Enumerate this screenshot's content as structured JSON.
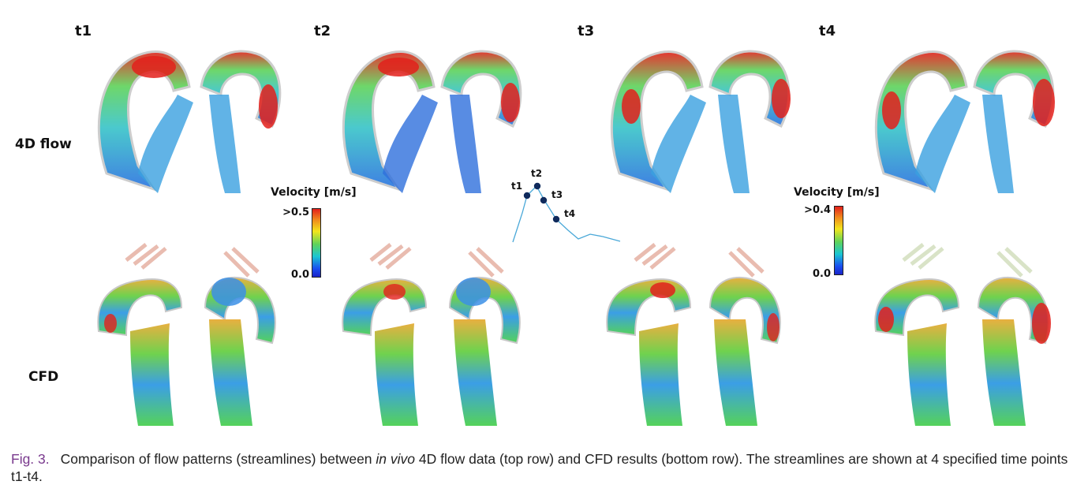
{
  "figure": {
    "timepoints": [
      "t1",
      "t2",
      "t3",
      "t4"
    ],
    "rows": {
      "top": "4D flow",
      "bottom": "CFD"
    },
    "colorbar_left": {
      "title": "Velocity [m/s]",
      "max": ">0.5",
      "min": "0.0"
    },
    "colorbar_right": {
      "title": "Velocity [m/s]",
      "max": ">0.4",
      "min": "0.0"
    },
    "inset": {
      "labels": [
        "t1",
        "t2",
        "t3",
        "t4"
      ]
    },
    "colors": {
      "high": "#e3201b",
      "mid": "#5fd35a",
      "low": "#1a4ef0",
      "vessel": "#cfcfcf"
    }
  },
  "caption": {
    "fig_no": "Fig. 3.",
    "part1": "Comparison of flow patterns (streamlines) between ",
    "italic": "in vivo",
    "part2": " 4D flow data (top row) and CFD results (bottom row). The streamlines are shown at 4 specified time points t1-t4."
  }
}
